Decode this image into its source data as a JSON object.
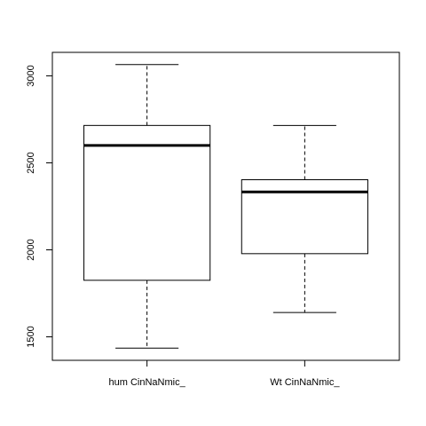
{
  "chart_data": {
    "type": "boxplot",
    "title": "",
    "xlabel": "",
    "ylabel": "",
    "ylim": [
      1365,
      3135
    ],
    "yticks": [
      1500,
      2000,
      2500,
      3000
    ],
    "categories": [
      "hum CinNaNmic_",
      "Wt CinNaNmic_"
    ],
    "boxes": [
      {
        "category": "hum CinNaNmic_",
        "whisker_low": 1435,
        "q1": 1825,
        "median": 2600,
        "q3": 2715,
        "whisker_high": 3065
      },
      {
        "category": "Wt CinNaNmic_",
        "whisker_low": 1640,
        "q1": 1978,
        "median": 2333,
        "q3": 2403,
        "whisker_high": 2715
      }
    ],
    "grid": false,
    "legend": "none"
  },
  "colors": {
    "box_fill": "#ffffff",
    "stroke": "#000000"
  }
}
